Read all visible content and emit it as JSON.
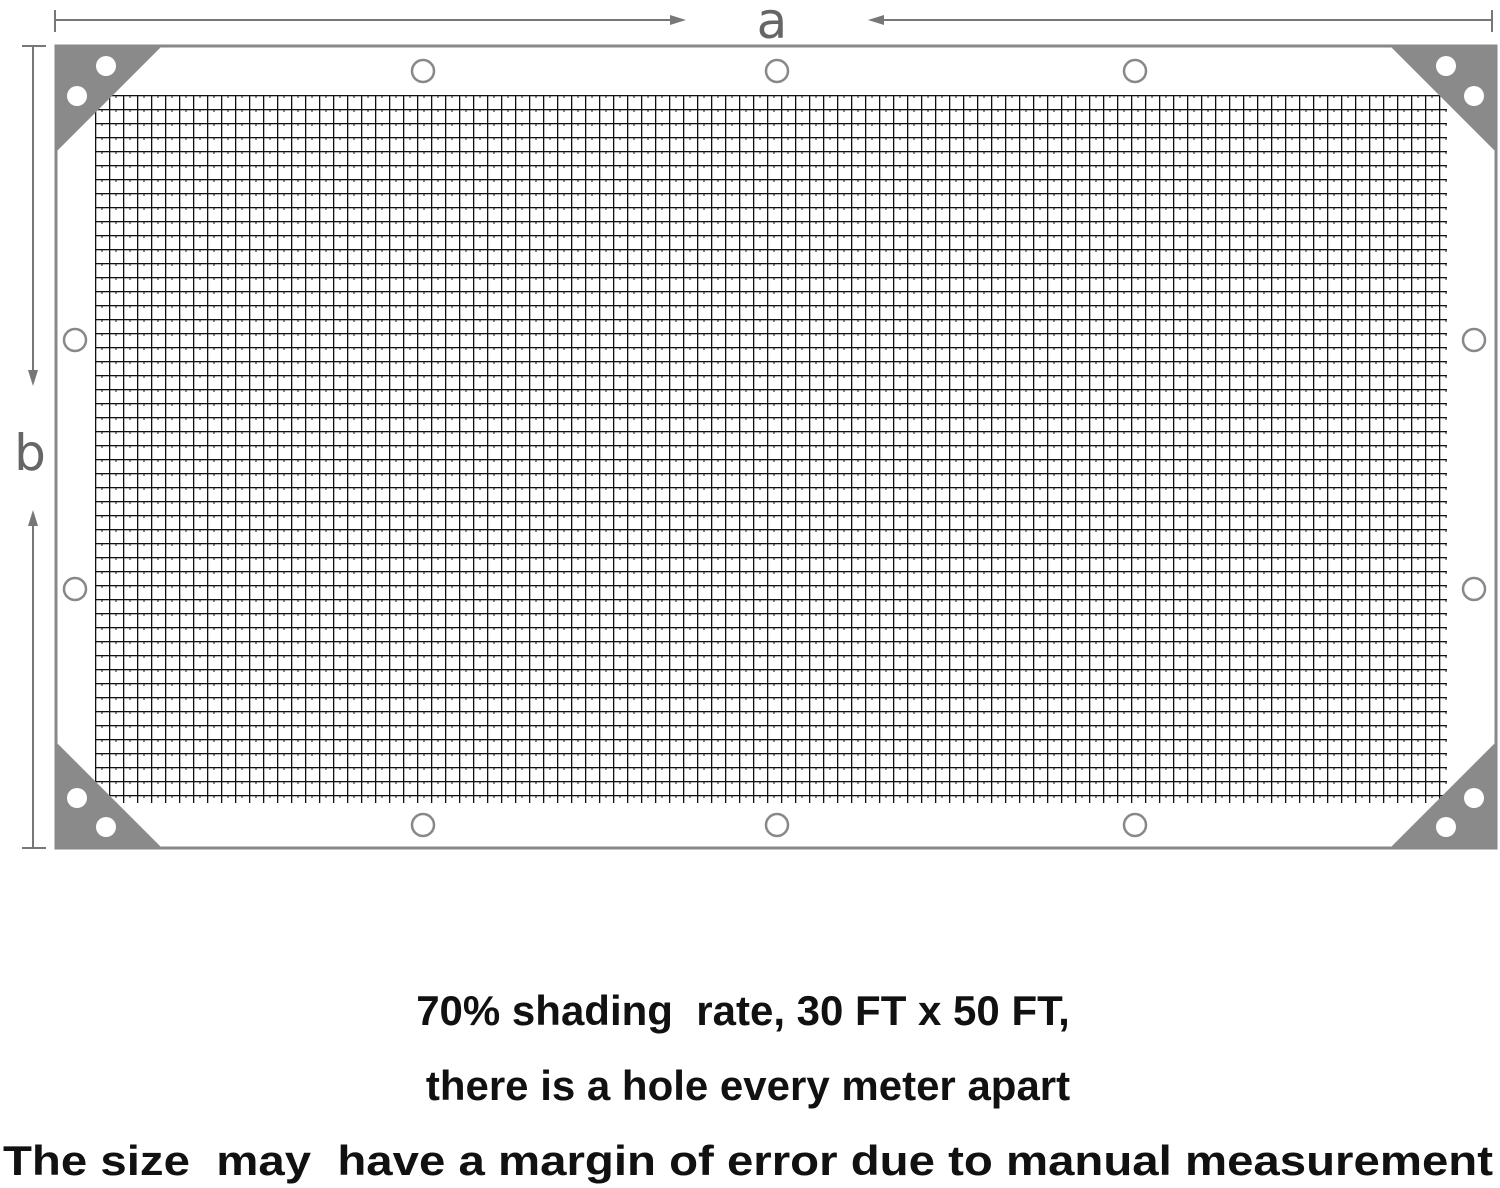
{
  "dimension_labels": {
    "width": "a",
    "height": "b"
  },
  "caption": [
    "70% shading  rate, 30 FT x 50 FT,",
    "there is a hole every meter apart",
    "The size  may  have a margin of error due to manual measurement"
  ]
}
